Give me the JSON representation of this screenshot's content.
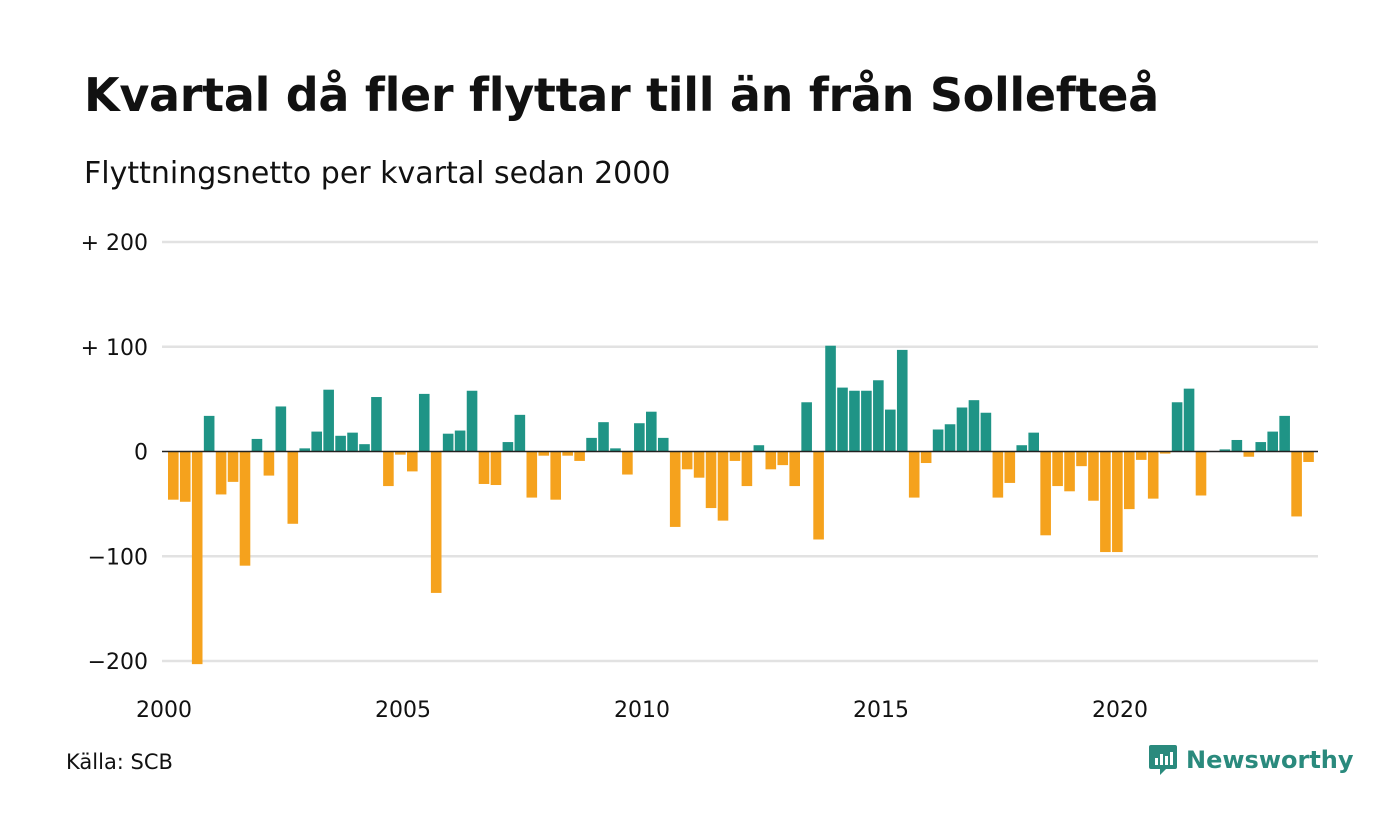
{
  "chart_data": {
    "type": "bar",
    "title": "Kvartal då fler flyttar till än från Sollefteå",
    "subtitle": "Flyttningsnetto per kvartal sedan 2000",
    "x_start": "2000 Q1",
    "x_ticks": [
      "2000",
      "2005",
      "2010",
      "2015",
      "2020"
    ],
    "y_ticks": [
      "−200",
      "−100",
      "0",
      "+ 100",
      "+ 200"
    ],
    "ylim": [
      -200,
      200
    ],
    "grid": true,
    "values": [
      -46,
      -48,
      -203,
      34,
      -41,
      -29,
      -109,
      12,
      -23,
      43,
      -69,
      3,
      19,
      59,
      15,
      18,
      7,
      52,
      -33,
      -3,
      -19,
      55,
      -135,
      17,
      20,
      58,
      -31,
      -32,
      9,
      35,
      -44,
      -4,
      -46,
      -4,
      -9,
      13,
      28,
      3,
      -22,
      27,
      38,
      13,
      -72,
      -17,
      -25,
      -54,
      -66,
      -9,
      -33,
      6,
      -17,
      -13,
      -33,
      47,
      -84,
      101,
      61,
      58,
      58,
      68,
      40,
      97,
      -44,
      -11,
      21,
      26,
      42,
      49,
      37,
      -44,
      -30,
      6,
      18,
      -80,
      -33,
      -38,
      -14,
      -47,
      -96,
      -96,
      -55,
      -8,
      -45,
      -2,
      47,
      60,
      -42,
      0,
      2,
      11,
      -5,
      9,
      19,
      34,
      -62,
      -10
    ],
    "colors": {
      "positive": "#1f9486",
      "negative": "#f5a21d"
    }
  },
  "footer": {
    "source": "Källa: SCB",
    "brand": "Newsworthy"
  }
}
